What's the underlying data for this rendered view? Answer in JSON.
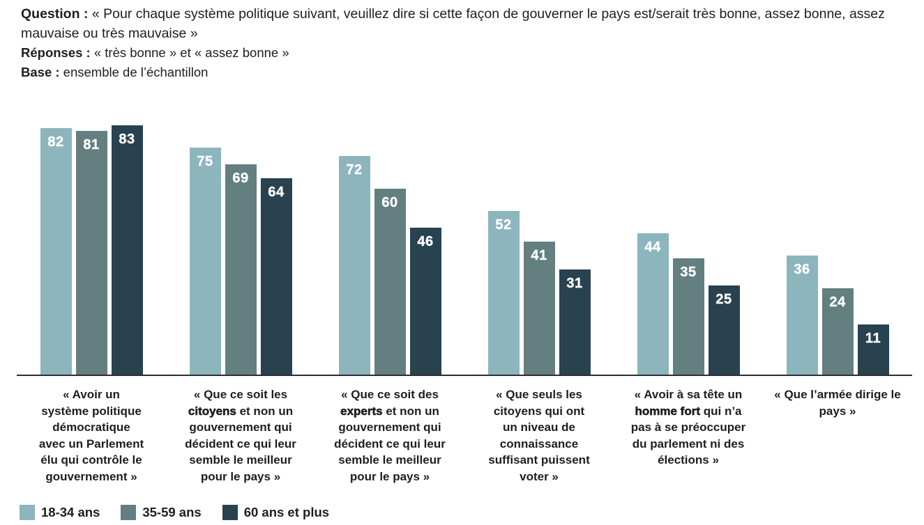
{
  "header": {
    "question_label": "Question :",
    "question_text": " « Pour chaque système politique suivant, veuillez dire si cette façon de gouverner le pays est/serait très bonne, assez bonne, assez mauvaise ou très mauvaise »",
    "responses_label": "Réponses :",
    "responses_text": " « très bonne » et « assez bonne »",
    "base_label": "Base :",
    "base_text": " ensemble de l’échantillon"
  },
  "chart_data": {
    "type": "bar",
    "title": "",
    "xlabel": "",
    "ylabel": "",
    "ylim": [
      0,
      100
    ],
    "grid": false,
    "legend_position": "bottom-left",
    "value_labels": "inside-top-white",
    "categories": [
      "« Avoir un système politique démocratique avec un Parlement élu qui contrôle le gouvernement »",
      "« Que ce soit les citoyens et non un gouvernement qui décident ce qui leur semble le meilleur pour le pays »",
      "« Que ce soit des experts et non un gouvernement qui décident ce qui leur semble le meilleur pour le pays »",
      "« Que seuls les citoyens qui ont un niveau de connaissance suffisant puissent voter »",
      "« Avoir à sa tête un homme fort qui n’a pas à se préoccuper du parlement ni des élections »",
      "« Que l’armée dirige le pays »"
    ],
    "category_lines": [
      [
        [
          {
            "t": "« Avoir un"
          }
        ],
        [
          {
            "t": "système politique"
          }
        ],
        [
          {
            "t": "démocratique"
          }
        ],
        [
          {
            "t": "avec un Parlement"
          }
        ],
        [
          {
            "t": "élu qui contrôle le"
          }
        ],
        [
          {
            "t": "gouvernement »"
          }
        ]
      ],
      [
        [
          {
            "t": "« Que ce soit les"
          }
        ],
        [
          {
            "t": "citoyens",
            "b": true
          },
          {
            "t": " et non un"
          }
        ],
        [
          {
            "t": "gouvernement qui"
          }
        ],
        [
          {
            "t": "décident ce qui leur"
          }
        ],
        [
          {
            "t": "semble le meilleur"
          }
        ],
        [
          {
            "t": "pour le pays »"
          }
        ]
      ],
      [
        [
          {
            "t": "« Que ce soit des"
          }
        ],
        [
          {
            "t": "experts",
            "b": true
          },
          {
            "t": " et non un"
          }
        ],
        [
          {
            "t": "gouvernement qui"
          }
        ],
        [
          {
            "t": "décident ce qui leur"
          }
        ],
        [
          {
            "t": "semble le meilleur"
          }
        ],
        [
          {
            "t": "pour le pays »"
          }
        ]
      ],
      [
        [
          {
            "t": "« Que seuls les"
          }
        ],
        [
          {
            "t": "citoyens qui ont"
          }
        ],
        [
          {
            "t": "un niveau de"
          }
        ],
        [
          {
            "t": "connaissance"
          }
        ],
        [
          {
            "t": "suffisant puissent"
          }
        ],
        [
          {
            "t": "voter »"
          }
        ]
      ],
      [
        [
          {
            "t": "« Avoir à sa tête un"
          }
        ],
        [
          {
            "t": "homme fort",
            "b": true
          },
          {
            "t": " qui n’a"
          }
        ],
        [
          {
            "t": "pas à se préoccuper"
          }
        ],
        [
          {
            "t": "du parlement ni des"
          }
        ],
        [
          {
            "t": "élections »"
          }
        ]
      ],
      [
        [
          {
            "t": "« Que l’armée dirige le"
          }
        ],
        [
          {
            "t": "pays »"
          }
        ]
      ]
    ],
    "series": [
      {
        "name": "18-34 ans",
        "color": "#8cb5be",
        "values": [
          82,
          75,
          72,
          52,
          44,
          36
        ]
      },
      {
        "name": "35-59 ans",
        "color": "#637f80",
        "values": [
          81,
          69,
          60,
          41,
          35,
          24
        ]
      },
      {
        "name": "60 ans et plus",
        "color": "#28424f",
        "values": [
          83,
          64,
          46,
          31,
          25,
          11
        ]
      }
    ]
  },
  "legend": {
    "items": [
      {
        "label": "18-34 ans",
        "color": "#8cb5be"
      },
      {
        "label": "35-59 ans",
        "color": "#637f80"
      },
      {
        "label": "60 ans et plus",
        "color": "#28424f"
      }
    ]
  },
  "colors": {
    "axis": "#2e2e2e",
    "text": "#1e1e1e",
    "value_label": "#ffffff"
  }
}
